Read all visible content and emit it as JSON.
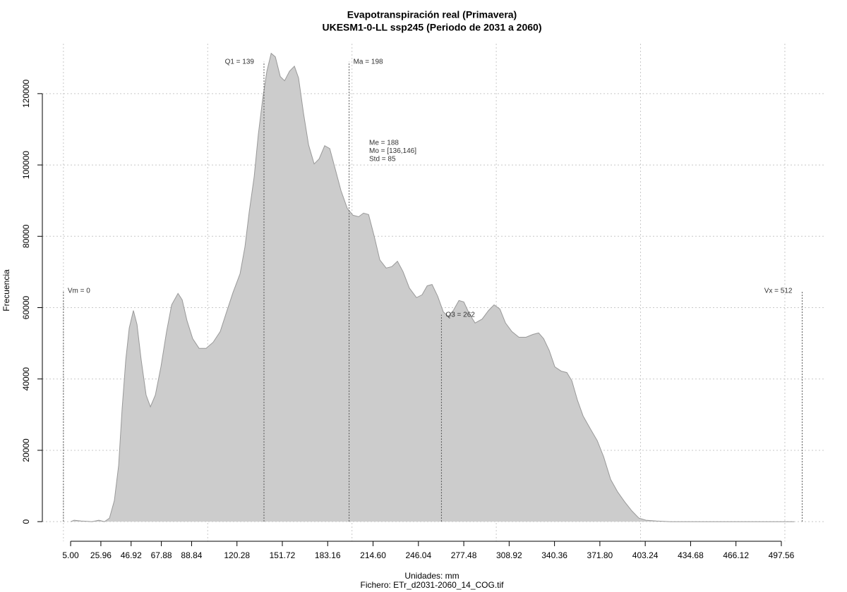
{
  "chart_data": {
    "type": "area",
    "title": "Evapotranspiración real (Primavera)",
    "subtitle": "UKESM1-0-LL ssp245 (Periodo de 2031 a 2060)",
    "xlabel": "Unidades: mm",
    "caption": "Fichero: ETr_d2031-2060_14_COG.tif",
    "ylabel": "Frecuencia",
    "color": "#cccccc",
    "line_color": "#999999",
    "grid": true,
    "x": [
      5,
      7.4,
      12.3,
      19.7,
      24.6,
      28.5,
      31.9,
      35.3,
      38.3,
      40.7,
      43.2,
      45.6,
      48.5,
      51.0,
      53.9,
      57.3,
      60.3,
      63.7,
      67.6,
      71.5,
      75.0,
      79.4,
      82.3,
      85.7,
      89.6,
      94.0,
      98.9,
      103.8,
      108.7,
      112.6,
      117.5,
      122.4,
      125.8,
      128.8,
      132.2,
      135.1,
      138.1,
      141.0,
      144.0,
      146.9,
      150.3,
      153.3,
      156.7,
      160.1,
      163.0,
      166.4,
      169.9,
      173.8,
      177.2,
      181.1,
      184.6,
      188.5,
      192.4,
      196.8,
      200.7,
      204.6,
      208.0,
      211.5,
      215.4,
      219.3,
      223.7,
      227.6,
      231.5,
      235.4,
      239.8,
      244.7,
      248.6,
      252.1,
      255.5,
      259.4,
      263.3,
      266.7,
      270.2,
      274.1,
      277.5,
      281.4,
      285.3,
      290.2,
      294.6,
      298.5,
      302.5,
      306.4,
      310.8,
      315.7,
      320.6,
      325.4,
      329.4,
      332.8,
      336.7,
      340.6,
      345.0,
      348.9,
      352.4,
      356.3,
      360.2,
      365.1,
      370.0,
      374.4,
      379.3,
      384.2,
      389.1,
      394.0,
      398.8,
      403.7,
      411.1,
      420.8,
      445.3,
      469.8,
      494.2,
      506.5
    ],
    "values": [
      0,
      400,
      200,
      0,
      400,
      0,
      1000,
      5900,
      15800,
      31600,
      45400,
      54300,
      59200,
      55300,
      45400,
      35500,
      32200,
      35500,
      43400,
      53300,
      60800,
      64000,
      62200,
      56300,
      51300,
      48600,
      48600,
      50300,
      53300,
      58200,
      64200,
      69500,
      77000,
      86900,
      96700,
      108600,
      118400,
      126300,
      131300,
      130300,
      124800,
      123600,
      126300,
      127700,
      124400,
      114500,
      105600,
      100300,
      101700,
      105400,
      104600,
      98700,
      92800,
      87800,
      85900,
      85500,
      86500,
      86100,
      80000,
      73400,
      71100,
      71500,
      73000,
      70100,
      65500,
      62800,
      63600,
      66100,
      66500,
      63200,
      58800,
      57600,
      59200,
      62000,
      61600,
      58200,
      55700,
      56800,
      59200,
      60800,
      59600,
      55700,
      53300,
      51700,
      51700,
      52500,
      52900,
      51300,
      48000,
      43400,
      42200,
      41800,
      39500,
      34000,
      29600,
      26100,
      22700,
      18200,
      11800,
      8300,
      5500,
      3000,
      1000,
      400,
      200,
      0,
      0,
      0,
      0,
      0
    ],
    "xlim": [
      -14.6,
      528.4
    ],
    "ylim": [
      -5500,
      134000
    ],
    "xticks": [
      {
        "value": 5,
        "label": "5.00"
      },
      25.96,
      46.92,
      67.88,
      88.84,
      120.28,
      151.72,
      183.16,
      {
        "value": 214.6,
        "label": "214.60"
      },
      246.04,
      277.48,
      308.92,
      340.36,
      {
        "value": 371.8,
        "label": "371.80"
      },
      403.24,
      434.68,
      466.12,
      497.56
    ],
    "yticks": [
      0,
      20000,
      40000,
      60000,
      80000,
      100000,
      120000
    ],
    "xgrid": [
      0,
      100,
      200,
      300,
      400,
      500
    ],
    "annotations": [
      {
        "label": "Vm = 0",
        "x": 0,
        "y": 64700
      },
      {
        "label": "Q1 = 139",
        "x": 139,
        "y": 128900
      },
      {
        "label": "Ma = 198",
        "x": 198,
        "y": 128900
      },
      {
        "label": "Q3 = 262",
        "x": 262,
        "y": 58000
      },
      {
        "label": "Vx = 512",
        "x": 512,
        "y": 64700
      }
    ],
    "stats": [
      "Me = 188",
      "Mo = [136,146]",
      "Std = 85"
    ]
  }
}
